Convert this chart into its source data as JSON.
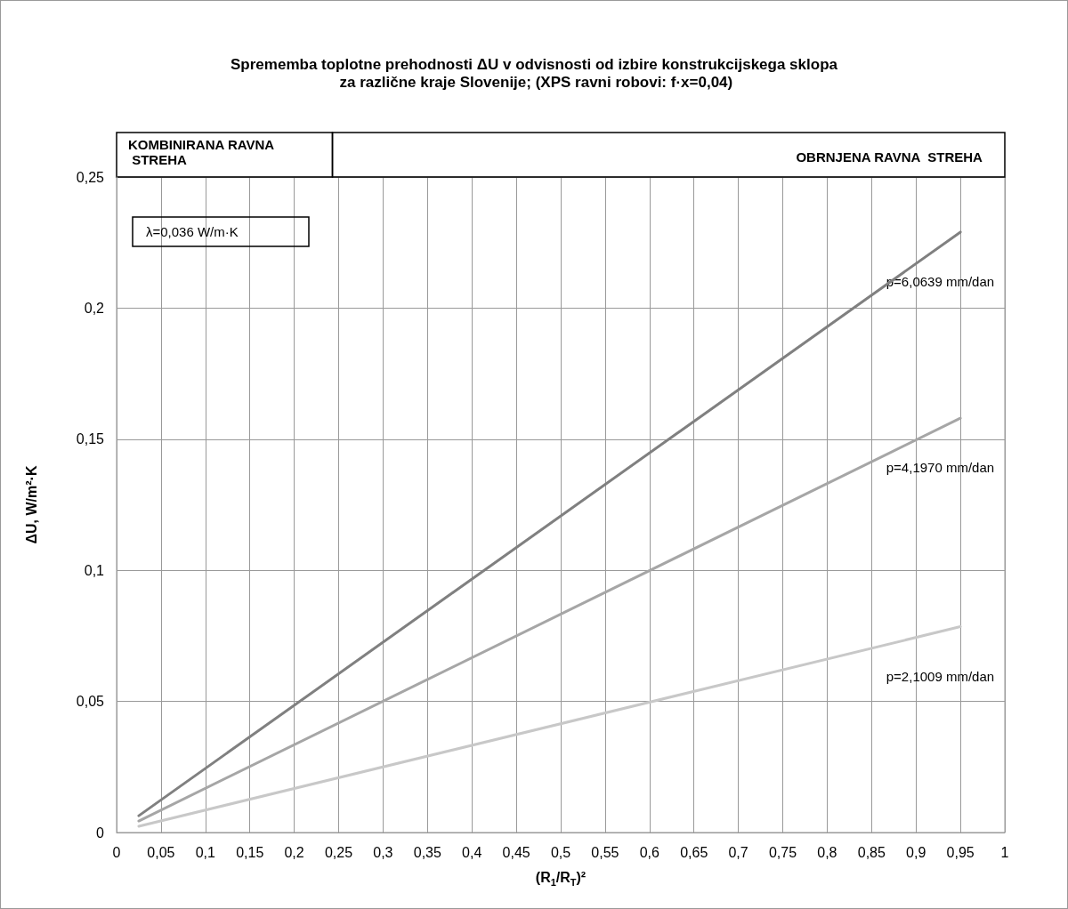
{
  "chart_data": {
    "type": "line",
    "title": "Sprememba toplotne prehodnosti ΔU v odvisnosti od izbire konstrukcijskega sklopa za različne kraje Slovenije; (XPS ravni robovi: f·x=0,04)",
    "xlabel": "(R$_{1}$/R$_{T}$)²",
    "ylabel": "ΔU, W/m²·K",
    "annotations": [
      "KOMBINIRANA RAVNA STREHA",
      "OBRNJENA RAVNA  STREHA",
      "λ=0,036 W/m·K"
    ],
    "x": [
      0.025,
      0.95
    ],
    "series": [
      {
        "name": "p=6,0639 mm/dan",
        "color": "#808080",
        "values": [
          0.0064,
          0.229
        ]
      },
      {
        "name": "p=4,1970 mm/dan",
        "color": "#a6a6a6",
        "values": [
          0.0044,
          0.158
        ]
      },
      {
        "name": "p=2,1009 mm/dan",
        "color": "#c8c8c8",
        "values": [
          0.0024,
          0.0785
        ]
      }
    ],
    "xlim": [
      0,
      1
    ],
    "xticks": [
      0,
      {
        "value": 0.05,
        "label": "0,05"
      },
      {
        "value": 0.1,
        "label": "0,1"
      },
      {
        "value": 0.15,
        "label": "0,15"
      },
      {
        "value": 0.2,
        "label": "0,2"
      },
      {
        "value": 0.25,
        "label": "0,25"
      },
      {
        "value": 0.3,
        "label": "0,3"
      },
      {
        "value": 0.35,
        "label": "0,35"
      },
      {
        "value": 0.4,
        "label": "0,4"
      },
      {
        "value": 0.45,
        "label": "0,45"
      },
      {
        "value": 0.5,
        "label": "0,5"
      },
      {
        "value": 0.55,
        "label": "0,55"
      },
      {
        "value": 0.6,
        "label": "0,6"
      },
      {
        "value": 0.65,
        "label": "0,65"
      },
      {
        "value": 0.7,
        "label": "0,7"
      },
      {
        "value": 0.75,
        "label": "0,75"
      },
      {
        "value": 0.8,
        "label": "0,8"
      },
      {
        "value": 0.85,
        "label": "0,85"
      },
      {
        "value": 0.9,
        "label": "0,9"
      },
      {
        "value": 0.95,
        "label": "0,95"
      },
      1
    ],
    "ylim": [
      0,
      0.25
    ],
    "yticks": [
      0,
      {
        "value": 0.05,
        "label": "0,05"
      },
      {
        "value": 0.1,
        "label": "0,1"
      },
      {
        "value": 0.15,
        "label": "0,15"
      },
      {
        "value": 0.2,
        "label": "0,2"
      },
      {
        "value": 0.25,
        "label": "0,25"
      }
    ],
    "grid": true,
    "legend": false,
    "marker": "none",
    "line_style": "solid"
  }
}
